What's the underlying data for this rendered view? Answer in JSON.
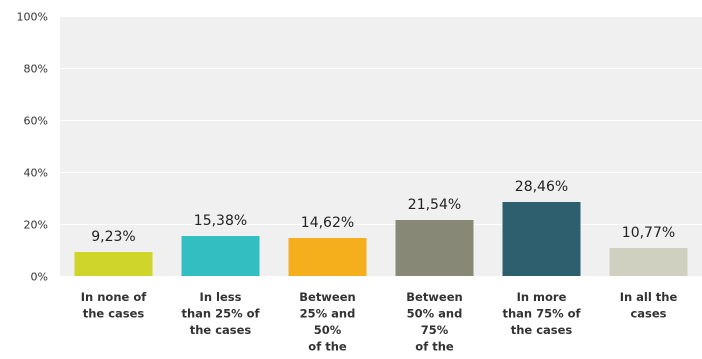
{
  "chart_data": {
    "type": "bar",
    "categories": [
      [
        "In none of",
        "the cases"
      ],
      [
        "In less",
        "than 25% of",
        "the cases"
      ],
      [
        "Between",
        "25% and",
        "50%",
        "of the"
      ],
      [
        "Between",
        "50% and",
        "75%",
        "of the"
      ],
      [
        "In more",
        "than 75% of",
        "the cases"
      ],
      [
        "In all the",
        "cases"
      ]
    ],
    "values": [
      9.23,
      15.38,
      14.62,
      21.54,
      28.46,
      10.77
    ],
    "value_labels": [
      "9,23%",
      "15,38%",
      "14,62%",
      "21,54%",
      "28,46%",
      "10,77%"
    ],
    "bar_colors": [
      "#cfd52b",
      "#33bfc1",
      "#f5ae1c",
      "#878876",
      "#2d5f6e",
      "#d0d0c0"
    ],
    "yticks": [
      0,
      20,
      40,
      60,
      80,
      100
    ],
    "ytick_labels": [
      "0%",
      "20%",
      "40%",
      "60%",
      "80%",
      "100%"
    ],
    "ylim": [
      0,
      100
    ],
    "grid": true,
    "plot_background": "#f0f0f0",
    "title": "",
    "xlabel": "",
    "ylabel": ""
  }
}
